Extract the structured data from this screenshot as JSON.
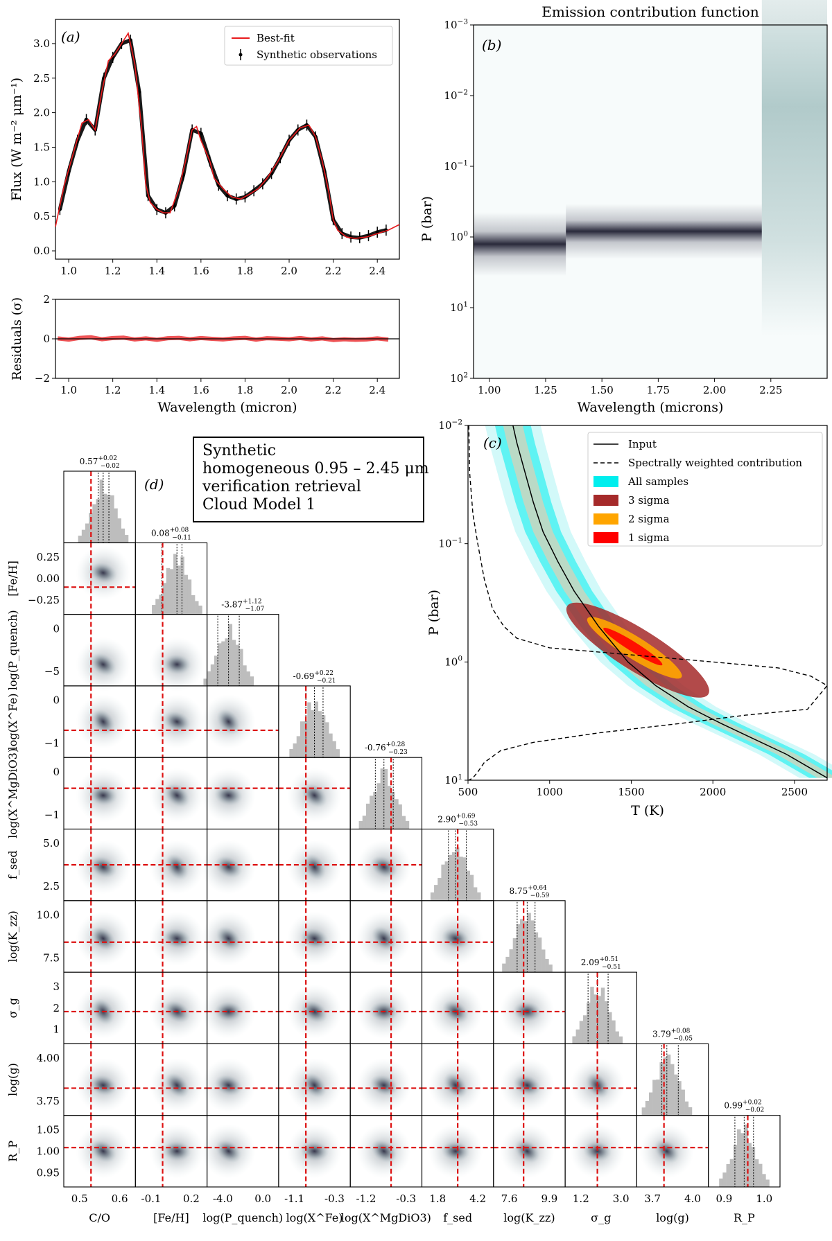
{
  "infobox": {
    "lines": [
      "Synthetic",
      "homogeneous 0.95 – 2.45 μm",
      "verification retrieval",
      "Cloud Model 1"
    ]
  },
  "colors": {
    "best_fit": "#e8191c",
    "observations": "#000000",
    "residuals": "#e8191c",
    "contribution": "#2d2d44",
    "all_samples": "#00eeee",
    "three_sigma": "#a52a2a",
    "two_sigma": "#ffa500",
    "one_sigma": "#ff0000",
    "truth_line": "#dd1111",
    "histogram": "#bdbdbd",
    "density": "#23233a"
  },
  "chart_data": [
    {
      "id": "a",
      "panel_label": "(a)",
      "type": "line",
      "ylabel": "Flux (W m⁻² μm⁻¹)",
      "xlim": [
        0.94,
        2.5
      ],
      "ylim": [
        -0.12,
        3.35
      ],
      "xticks": [
        1.0,
        1.2,
        1.4,
        1.6,
        1.8,
        2.0,
        2.2,
        2.4
      ],
      "yticks": [
        0.0,
        0.5,
        1.0,
        1.5,
        2.0,
        2.5,
        3.0
      ],
      "xtick_labels": [
        "1.0",
        "1.2",
        "1.4",
        "1.6",
        "1.8",
        "2.0",
        "2.2",
        "2.4"
      ],
      "ytick_labels": [
        "0.0",
        "0.5",
        "1.0",
        "1.5",
        "2.0",
        "2.5",
        "3.0"
      ],
      "legend": {
        "placement": "top-right",
        "entries": [
          "Best-fit",
          "Synthetic observations"
        ]
      },
      "series": [
        {
          "name": "Best-fit",
          "x": [
            0.94,
            0.98,
            1.02,
            1.06,
            1.09,
            1.12,
            1.15,
            1.18,
            1.21,
            1.24,
            1.27,
            1.3,
            1.33,
            1.35,
            1.37,
            1.4,
            1.43,
            1.46,
            1.5,
            1.53,
            1.56,
            1.58,
            1.6,
            1.62,
            1.64,
            1.66,
            1.7,
            1.74,
            1.78,
            1.82,
            1.86,
            1.9,
            1.95,
            2.0,
            2.05,
            2.09,
            2.12,
            2.15,
            2.18,
            2.2,
            2.22,
            2.26,
            2.3,
            2.35,
            2.4,
            2.45,
            2.5
          ],
          "y": [
            0.35,
            0.95,
            1.4,
            1.85,
            1.9,
            1.75,
            2.3,
            2.75,
            2.85,
            3.0,
            3.15,
            2.7,
            1.8,
            0.95,
            0.7,
            0.6,
            0.55,
            0.55,
            0.9,
            1.3,
            1.75,
            1.8,
            1.6,
            1.45,
            1.3,
            1.05,
            0.9,
            0.78,
            0.75,
            0.82,
            0.9,
            1.05,
            1.3,
            1.6,
            1.78,
            1.82,
            1.65,
            1.3,
            0.85,
            0.45,
            0.3,
            0.2,
            0.18,
            0.2,
            0.25,
            0.3,
            0.38
          ]
        },
        {
          "name": "Synthetic observations",
          "x": [
            0.96,
            1.0,
            1.04,
            1.08,
            1.12,
            1.16,
            1.2,
            1.24,
            1.28,
            1.32,
            1.36,
            1.4,
            1.44,
            1.48,
            1.52,
            1.56,
            1.6,
            1.64,
            1.68,
            1.72,
            1.76,
            1.8,
            1.84,
            1.88,
            1.92,
            1.96,
            2.0,
            2.04,
            2.08,
            2.12,
            2.16,
            2.2,
            2.24,
            2.28,
            2.32,
            2.36,
            2.4,
            2.44
          ],
          "y": [
            0.6,
            1.15,
            1.6,
            1.9,
            1.75,
            2.5,
            2.8,
            3.0,
            3.05,
            2.3,
            0.8,
            0.6,
            0.55,
            0.65,
            1.1,
            1.75,
            1.7,
            1.3,
            0.95,
            0.8,
            0.75,
            0.78,
            0.87,
            0.97,
            1.12,
            1.35,
            1.6,
            1.75,
            1.82,
            1.65,
            1.15,
            0.45,
            0.25,
            0.2,
            0.19,
            0.22,
            0.27,
            0.3
          ]
        }
      ]
    },
    {
      "id": "a-res",
      "type": "line",
      "xlabel": "Wavelength (micron)",
      "ylabel": "Residuals (σ)",
      "xlim": [
        0.94,
        2.5
      ],
      "ylim": [
        -2,
        2
      ],
      "xticks": [
        1.0,
        1.2,
        1.4,
        1.6,
        1.8,
        2.0,
        2.2,
        2.4
      ],
      "yticks": [
        -2,
        0,
        2
      ],
      "xtick_labels": [
        "1.0",
        "1.2",
        "1.4",
        "1.6",
        "1.8",
        "2.0",
        "2.2",
        "2.4"
      ],
      "ytick_labels": [
        "−2",
        "0",
        "2"
      ],
      "series": [
        {
          "x": [
            0.95,
            1.0,
            1.05,
            1.1,
            1.15,
            1.2,
            1.25,
            1.3,
            1.35,
            1.4,
            1.45,
            1.5,
            1.55,
            1.6,
            1.65,
            1.7,
            1.75,
            1.8,
            1.85,
            1.9,
            1.95,
            2.0,
            2.05,
            2.1,
            2.15,
            2.2,
            2.25,
            2.3,
            2.35,
            2.4,
            2.45
          ],
          "y": [
            0.02,
            -0.04,
            0.05,
            0.08,
            -0.02,
            0.04,
            0.06,
            -0.03,
            0.02,
            -0.05,
            0.03,
            0.05,
            -0.02,
            0.04,
            0.0,
            -0.03,
            0.02,
            0.05,
            -0.04,
            0.03,
            0.01,
            -0.02,
            0.04,
            -0.03,
            0.02,
            -0.06,
            -0.02,
            -0.05,
            -0.03,
            0.02,
            -0.04
          ]
        }
      ]
    },
    {
      "id": "b",
      "panel_label": "(b)",
      "type": "heatmap",
      "title": "Emission contribution function",
      "xlabel": "Wavelength (microns)",
      "ylabel": "P (bar)",
      "xlim": [
        0.93,
        2.5
      ],
      "ylim_log10": [
        -3,
        2
      ],
      "xticks": [
        1.0,
        1.25,
        1.5,
        1.75,
        2.0,
        2.25
      ],
      "xtick_labels": [
        "1.00",
        "1.25",
        "1.50",
        "1.75",
        "2.00",
        "2.25"
      ],
      "yticks_log10": [
        -3,
        -2,
        -1,
        0,
        1,
        2
      ],
      "ytick_exponents": [
        "−3",
        "−2",
        "−1",
        "0",
        "1",
        "2"
      ],
      "ytick_base": "10",
      "bands": [
        {
          "x0": 0.93,
          "x1": 1.34,
          "center_log10": 0.1,
          "halfwidth": 0.15
        },
        {
          "x0": 1.34,
          "x1": 2.21,
          "center_log10": -0.08,
          "halfwidth": 0.13
        },
        {
          "x0": 2.21,
          "x1": 2.5,
          "center_log10": -1.3,
          "halfwidth": 0.9
        }
      ]
    },
    {
      "id": "c",
      "panel_label": "(c)",
      "type": "line",
      "xlabel": "T (K)",
      "ylabel": "P (bar)",
      "xlim": [
        500,
        2700
      ],
      "ylim_log10": [
        -2,
        1
      ],
      "xticks": [
        500,
        1000,
        1500,
        2000,
        2500
      ],
      "xtick_labels": [
        "500",
        "1000",
        "1500",
        "2000",
        "2500"
      ],
      "yticks_log10": [
        -2,
        -1,
        0,
        1
      ],
      "ytick_exponents": [
        "−2",
        "−1",
        "0",
        "1"
      ],
      "ytick_base": "10",
      "legend": {
        "placement": "top-right",
        "entries": [
          "Input",
          "Spectrally weighted contribution",
          "All samples",
          "3 sigma",
          "2 sigma",
          "1 sigma"
        ]
      },
      "series": [
        {
          "name": "Input",
          "T": [
            775,
            800,
            850,
            900,
            960,
            1050,
            1150,
            1300,
            1480,
            1650,
            1850,
            2050,
            2250,
            2450,
            2650,
            2700
          ],
          "log10P": [
            -2.0,
            -1.85,
            -1.6,
            -1.35,
            -1.1,
            -0.85,
            -0.6,
            -0.3,
            0.0,
            0.2,
            0.38,
            0.52,
            0.65,
            0.78,
            0.94,
            0.98
          ]
        },
        {
          "name": "Spectrally weighted contribution",
          "T": [
            505,
            510,
            530,
            560,
            600,
            650,
            720,
            800,
            1000,
            1500,
            2000,
            2400,
            2600,
            2700,
            2580,
            2200,
            1800,
            1300,
            900,
            700,
            600,
            560,
            530,
            505
          ],
          "log10P": [
            -2.0,
            -1.6,
            -1.25,
            -1.0,
            -0.7,
            -0.45,
            -0.3,
            -0.2,
            -0.12,
            -0.06,
            0.0,
            0.05,
            0.12,
            0.2,
            0.4,
            0.45,
            0.52,
            0.6,
            0.68,
            0.75,
            0.85,
            0.93,
            0.98,
            1.0
          ]
        }
      ]
    },
    {
      "id": "d",
      "panel_label": "(d)",
      "type": "scatter",
      "params": [
        {
          "label": "C/O",
          "value": "0.57",
          "plus": "+0.02",
          "minus": "−0.02",
          "truth_frac": 0.38,
          "med_frac": 0.55,
          "lo_frac": 0.48,
          "hi_frac": 0.63,
          "ticks": [
            "0.5",
            "0.6"
          ]
        },
        {
          "label": "[Fe/H]",
          "value": "0.08",
          "plus": "+0.08",
          "minus": "−0.11",
          "truth_frac": 0.38,
          "med_frac": 0.58,
          "lo_frac": 0.37,
          "hi_frac": 0.65,
          "ticks": [
            "-0.1",
            "0.2"
          ]
        },
        {
          "label": "log(P_quench)",
          "value": "-3.87",
          "plus": "+1.12",
          "minus": "−1.07",
          "truth_frac": null,
          "med_frac": 0.3,
          "lo_frac": 0.15,
          "hi_frac": 0.45,
          "ticks": [
            "-4.0",
            "0.0"
          ]
        },
        {
          "label": "log(X^Fe)",
          "value": "-0.69",
          "plus": "+0.22",
          "minus": "−0.21",
          "truth_frac": 0.38,
          "med_frac": 0.5,
          "lo_frac": 0.38,
          "hi_frac": 0.62,
          "ticks": [
            "-1.1",
            "-0.3"
          ]
        },
        {
          "label": "log(X^MgDiO3)",
          "value": "-0.76",
          "plus": "+0.28",
          "minus": "−0.23",
          "truth_frac": 0.57,
          "med_frac": 0.47,
          "lo_frac": 0.35,
          "hi_frac": 0.6,
          "ticks": [
            "-1.2",
            "-0.3"
          ]
        },
        {
          "label": "f_sed",
          "value": "2.90",
          "plus": "+0.69",
          "minus": "−0.53",
          "truth_frac": 0.5,
          "med_frac": 0.47,
          "lo_frac": 0.37,
          "hi_frac": 0.62,
          "ticks": [
            "1.8",
            "4.2"
          ]
        },
        {
          "label": "log(K_zz)",
          "value": "8.75",
          "plus": "+0.64",
          "minus": "−0.59",
          "truth_frac": 0.42,
          "med_frac": 0.47,
          "lo_frac": 0.33,
          "hi_frac": 0.58,
          "ticks": [
            "7.6",
            "9.9"
          ]
        },
        {
          "label": "σ_g",
          "value": "2.09",
          "plus": "+0.51",
          "minus": "−0.51",
          "truth_frac": 0.45,
          "med_frac": 0.45,
          "lo_frac": 0.32,
          "hi_frac": 0.6,
          "ticks": [
            "1.2",
            "3.0"
          ]
        },
        {
          "label": "log(g)",
          "value": "3.79",
          "plus": "+0.08",
          "minus": "−0.05",
          "truth_frac": 0.38,
          "med_frac": 0.42,
          "lo_frac": 0.35,
          "hi_frac": 0.58,
          "ticks": [
            "3.7",
            "4.0"
          ]
        },
        {
          "label": "R_P",
          "value": "0.99",
          "plus": "+0.02",
          "minus": "−0.02",
          "truth_frac": 0.55,
          "med_frac": 0.5,
          "lo_frac": 0.37,
          "hi_frac": 0.63,
          "ticks": [
            "0.9",
            "1.0"
          ]
        }
      ],
      "row_ticks": [
        {
          "row": 1,
          "labels": [
            "0.25",
            "0.00",
            "−0.25"
          ]
        },
        {
          "row": 2,
          "labels": [
            "0",
            "−5"
          ]
        },
        {
          "row": 3,
          "labels": [
            "0",
            "−1"
          ]
        },
        {
          "row": 4,
          "labels": [
            "0",
            "−1"
          ]
        },
        {
          "row": 5,
          "labels": [
            "5.0",
            "2.5"
          ]
        },
        {
          "row": 6,
          "labels": [
            "10.0",
            "7.5"
          ]
        },
        {
          "row": 7,
          "labels": [
            "3",
            "2",
            "1"
          ]
        },
        {
          "row": 8,
          "labels": [
            "4.00",
            "3.75"
          ]
        },
        {
          "row": 9,
          "labels": [
            "1.05",
            "1.00",
            "0.95"
          ]
        }
      ]
    }
  ]
}
